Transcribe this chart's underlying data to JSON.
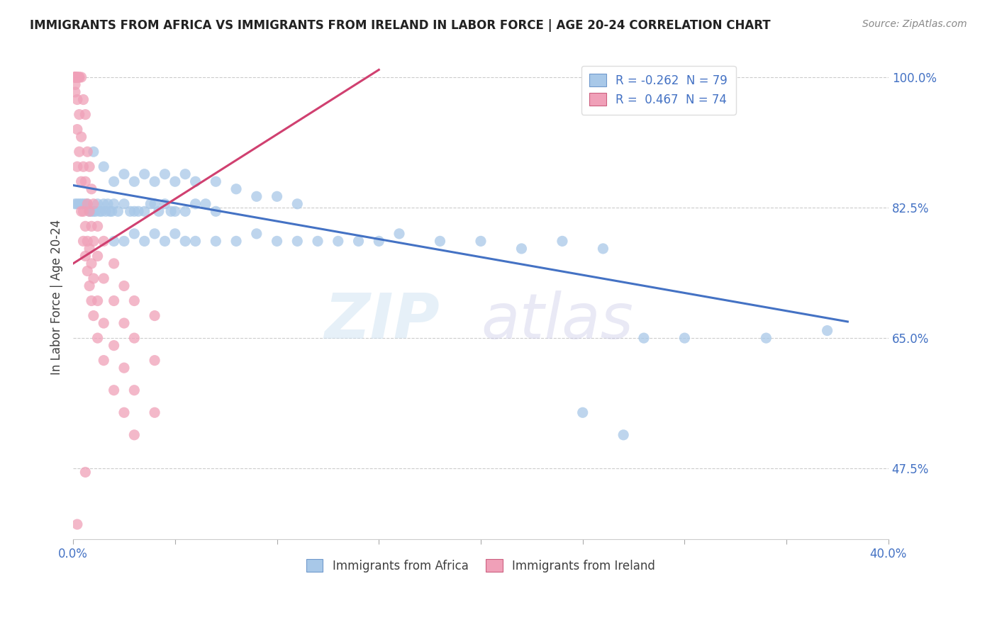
{
  "title": "IMMIGRANTS FROM AFRICA VS IMMIGRANTS FROM IRELAND IN LABOR FORCE | AGE 20-24 CORRELATION CHART",
  "source": "Source: ZipAtlas.com",
  "ylabel": "In Labor Force | Age 20-24",
  "xlim": [
    0.0,
    0.4
  ],
  "ylim": [
    0.38,
    1.03
  ],
  "africa_color": "#a8c8e8",
  "ireland_color": "#f0a0b8",
  "africa_line_color": "#4472c4",
  "ireland_line_color": "#d04070",
  "africa_line_x0": 0.0,
  "africa_line_x1": 0.38,
  "africa_line_y0": 0.855,
  "africa_line_y1": 0.672,
  "ireland_line_x0": 0.0,
  "ireland_line_x1": 0.15,
  "ireland_line_y0": 0.75,
  "ireland_line_y1": 1.01,
  "africa_points": [
    [
      0.001,
      0.83
    ],
    [
      0.002,
      0.83
    ],
    [
      0.003,
      0.83
    ],
    [
      0.004,
      0.83
    ],
    [
      0.005,
      0.83
    ],
    [
      0.006,
      0.83
    ],
    [
      0.007,
      0.83
    ],
    [
      0.008,
      0.82
    ],
    [
      0.009,
      0.82
    ],
    [
      0.01,
      0.82
    ],
    [
      0.011,
      0.82
    ],
    [
      0.012,
      0.83
    ],
    [
      0.013,
      0.82
    ],
    [
      0.014,
      0.82
    ],
    [
      0.015,
      0.83
    ],
    [
      0.016,
      0.82
    ],
    [
      0.017,
      0.83
    ],
    [
      0.018,
      0.82
    ],
    [
      0.019,
      0.82
    ],
    [
      0.02,
      0.83
    ],
    [
      0.022,
      0.82
    ],
    [
      0.025,
      0.83
    ],
    [
      0.028,
      0.82
    ],
    [
      0.03,
      0.82
    ],
    [
      0.032,
      0.82
    ],
    [
      0.035,
      0.82
    ],
    [
      0.038,
      0.83
    ],
    [
      0.04,
      0.83
    ],
    [
      0.042,
      0.82
    ],
    [
      0.045,
      0.83
    ],
    [
      0.048,
      0.82
    ],
    [
      0.05,
      0.82
    ],
    [
      0.055,
      0.82
    ],
    [
      0.06,
      0.83
    ],
    [
      0.065,
      0.83
    ],
    [
      0.07,
      0.82
    ],
    [
      0.01,
      0.9
    ],
    [
      0.015,
      0.88
    ],
    [
      0.02,
      0.86
    ],
    [
      0.025,
      0.87
    ],
    [
      0.03,
      0.86
    ],
    [
      0.035,
      0.87
    ],
    [
      0.04,
      0.86
    ],
    [
      0.045,
      0.87
    ],
    [
      0.05,
      0.86
    ],
    [
      0.055,
      0.87
    ],
    [
      0.06,
      0.86
    ],
    [
      0.07,
      0.86
    ],
    [
      0.08,
      0.85
    ],
    [
      0.09,
      0.84
    ],
    [
      0.1,
      0.84
    ],
    [
      0.11,
      0.83
    ],
    [
      0.02,
      0.78
    ],
    [
      0.025,
      0.78
    ],
    [
      0.03,
      0.79
    ],
    [
      0.035,
      0.78
    ],
    [
      0.04,
      0.79
    ],
    [
      0.045,
      0.78
    ],
    [
      0.05,
      0.79
    ],
    [
      0.055,
      0.78
    ],
    [
      0.06,
      0.78
    ],
    [
      0.07,
      0.78
    ],
    [
      0.08,
      0.78
    ],
    [
      0.09,
      0.79
    ],
    [
      0.1,
      0.78
    ],
    [
      0.11,
      0.78
    ],
    [
      0.12,
      0.78
    ],
    [
      0.13,
      0.78
    ],
    [
      0.14,
      0.78
    ],
    [
      0.15,
      0.78
    ],
    [
      0.16,
      0.79
    ],
    [
      0.18,
      0.78
    ],
    [
      0.2,
      0.78
    ],
    [
      0.22,
      0.77
    ],
    [
      0.24,
      0.78
    ],
    [
      0.26,
      0.77
    ],
    [
      0.28,
      0.65
    ],
    [
      0.3,
      0.65
    ],
    [
      0.34,
      0.65
    ],
    [
      0.37,
      0.66
    ],
    [
      0.25,
      0.55
    ],
    [
      0.27,
      0.52
    ]
  ],
  "ireland_points": [
    [
      0.001,
      1.0
    ],
    [
      0.001,
      1.0
    ],
    [
      0.001,
      1.0
    ],
    [
      0.001,
      1.0
    ],
    [
      0.001,
      1.0
    ],
    [
      0.001,
      1.0
    ],
    [
      0.001,
      1.0
    ],
    [
      0.001,
      1.0
    ],
    [
      0.001,
      0.99
    ],
    [
      0.001,
      0.98
    ],
    [
      0.002,
      1.0
    ],
    [
      0.002,
      1.0
    ],
    [
      0.002,
      1.0
    ],
    [
      0.002,
      0.97
    ],
    [
      0.002,
      0.93
    ],
    [
      0.002,
      0.88
    ],
    [
      0.003,
      1.0
    ],
    [
      0.003,
      1.0
    ],
    [
      0.003,
      0.95
    ],
    [
      0.003,
      0.9
    ],
    [
      0.004,
      1.0
    ],
    [
      0.004,
      0.92
    ],
    [
      0.004,
      0.86
    ],
    [
      0.004,
      0.82
    ],
    [
      0.005,
      0.97
    ],
    [
      0.005,
      0.88
    ],
    [
      0.005,
      0.82
    ],
    [
      0.005,
      0.78
    ],
    [
      0.006,
      0.95
    ],
    [
      0.006,
      0.86
    ],
    [
      0.006,
      0.8
    ],
    [
      0.006,
      0.76
    ],
    [
      0.007,
      0.9
    ],
    [
      0.007,
      0.83
    ],
    [
      0.007,
      0.78
    ],
    [
      0.007,
      0.74
    ],
    [
      0.008,
      0.88
    ],
    [
      0.008,
      0.82
    ],
    [
      0.008,
      0.77
    ],
    [
      0.008,
      0.72
    ],
    [
      0.009,
      0.85
    ],
    [
      0.009,
      0.8
    ],
    [
      0.009,
      0.75
    ],
    [
      0.009,
      0.7
    ],
    [
      0.01,
      0.83
    ],
    [
      0.01,
      0.78
    ],
    [
      0.01,
      0.73
    ],
    [
      0.01,
      0.68
    ],
    [
      0.012,
      0.8
    ],
    [
      0.012,
      0.76
    ],
    [
      0.012,
      0.7
    ],
    [
      0.012,
      0.65
    ],
    [
      0.015,
      0.78
    ],
    [
      0.015,
      0.73
    ],
    [
      0.015,
      0.67
    ],
    [
      0.015,
      0.62
    ],
    [
      0.02,
      0.75
    ],
    [
      0.02,
      0.7
    ],
    [
      0.02,
      0.64
    ],
    [
      0.02,
      0.58
    ],
    [
      0.025,
      0.72
    ],
    [
      0.025,
      0.67
    ],
    [
      0.025,
      0.61
    ],
    [
      0.025,
      0.55
    ],
    [
      0.03,
      0.7
    ],
    [
      0.03,
      0.65
    ],
    [
      0.03,
      0.58
    ],
    [
      0.03,
      0.52
    ],
    [
      0.04,
      0.68
    ],
    [
      0.04,
      0.62
    ],
    [
      0.04,
      0.55
    ],
    [
      0.002,
      0.4
    ],
    [
      0.006,
      0.47
    ]
  ]
}
